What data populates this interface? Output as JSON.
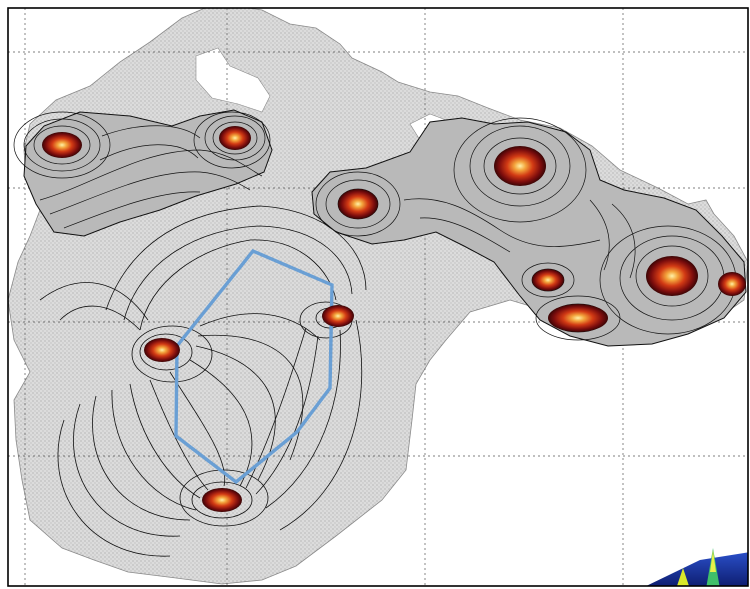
{
  "figure": {
    "background": "#ffffff",
    "frame_color": "#000000",
    "grid_color": "#555555",
    "region_fill": "#dcdcdc",
    "stipple_color": "#8a8a8a",
    "contour_color": "#111111",
    "polygon_color": "#6a9fd4",
    "hotspot_core": "#ffe07a",
    "hotspot_mid": "#e2571b",
    "hotspot_edge": "#6e0b0b",
    "inset_colors": [
      "#1a2a8c",
      "#2f9fd8",
      "#d8e82a"
    ]
  }
}
